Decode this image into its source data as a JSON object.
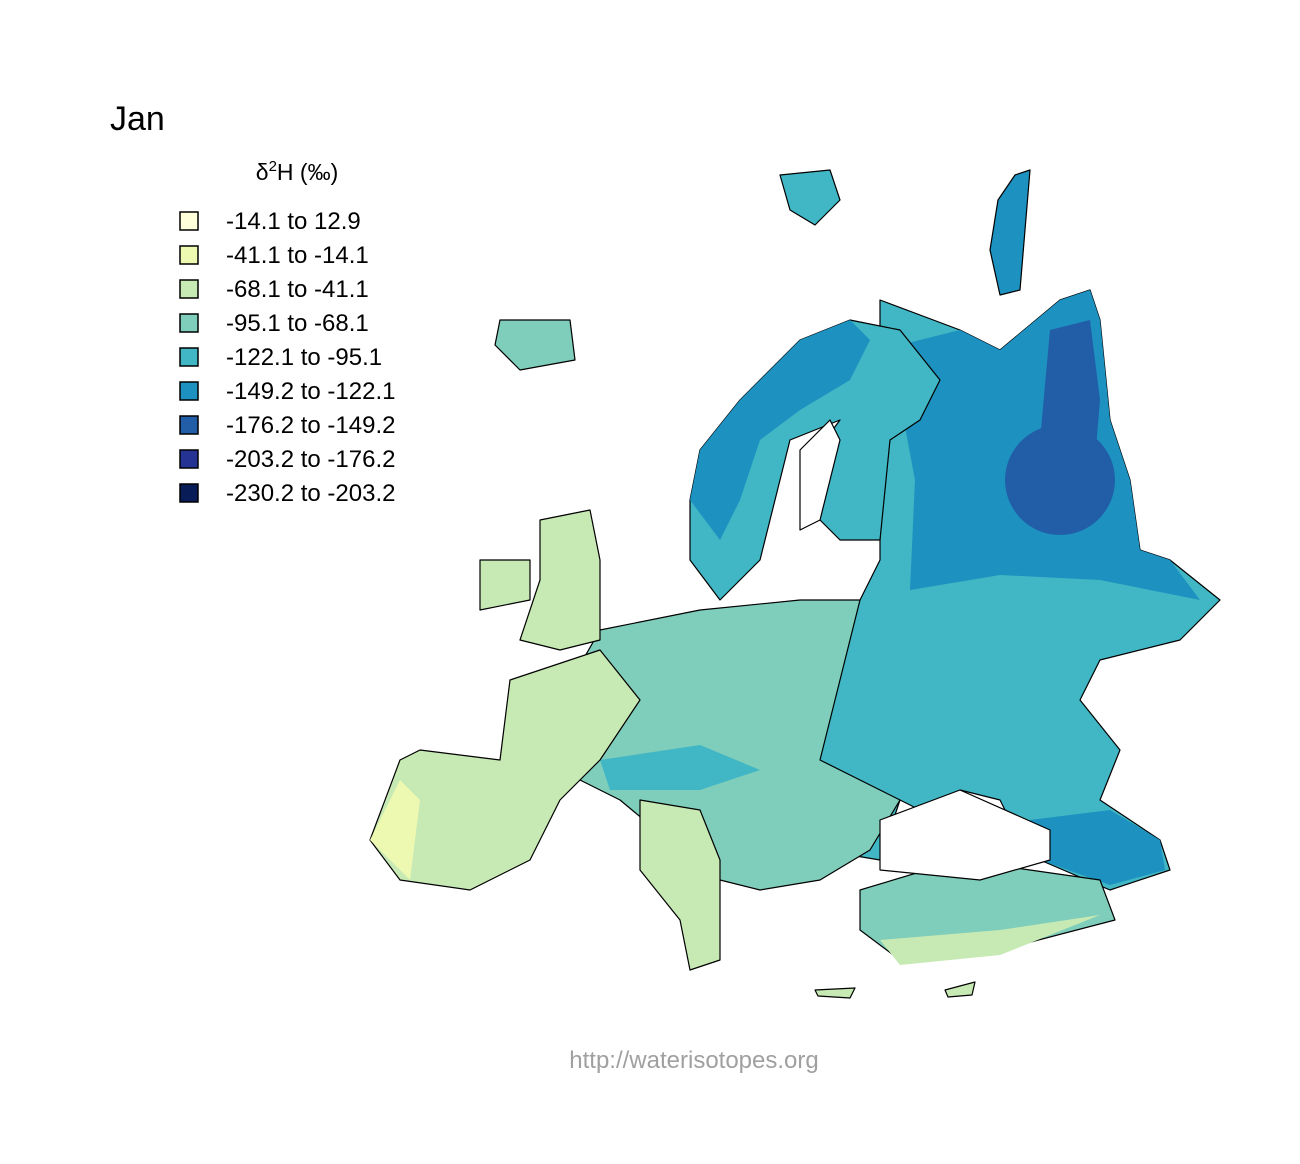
{
  "title": "Jan",
  "legend": {
    "title": {
      "symbol": "δ",
      "superscript": "2",
      "text": "H (‰)"
    },
    "classes": [
      {
        "label": "-14.1 to 12.9",
        "color": "#ffffd9"
      },
      {
        "label": "-41.1 to -14.1",
        "color": "#edf8b1"
      },
      {
        "label": "-68.1 to -41.1",
        "color": "#c7e9b4"
      },
      {
        "label": "-95.1 to -68.1",
        "color": "#7fcdbb"
      },
      {
        "label": "-122.1 to -95.1",
        "color": "#41b6c4"
      },
      {
        "label": "-149.2 to -122.1",
        "color": "#1d91c0"
      },
      {
        "label": "-176.2 to -149.2",
        "color": "#225ea8"
      },
      {
        "label": "-203.2 to -176.2",
        "color": "#253494"
      },
      {
        "label": "-230.2 to -203.2",
        "color": "#081d58"
      }
    ]
  },
  "footer": "http://waterisotopes.org"
}
